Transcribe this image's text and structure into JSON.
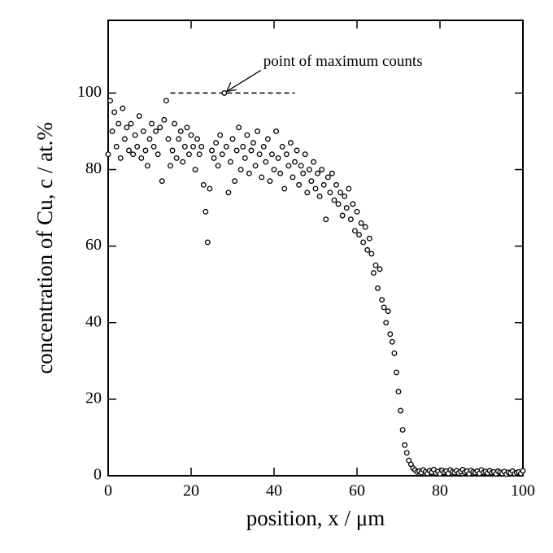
{
  "chart_data": {
    "type": "scatter",
    "xlabel": "position, x / μm",
    "ylabel": "concentration of Cu, c / at.%",
    "xlim": [
      0,
      100
    ],
    "xticks": [
      0,
      20,
      40,
      60,
      80,
      100
    ],
    "ylim": [
      0,
      119
    ],
    "yticks": [
      0,
      20,
      40,
      60,
      80,
      100
    ],
    "annotation": {
      "text": "point of maximum counts",
      "x": 28,
      "y": 100
    },
    "reference_line": {
      "y": 100,
      "x": [
        15,
        45
      ]
    },
    "series": [
      {
        "color": "#000000",
        "x": [
          0,
          0.5,
          1,
          1.5,
          2,
          2.5,
          3,
          3.5,
          4,
          4.5,
          5,
          5.5,
          6,
          6.5,
          7,
          7.5,
          8,
          8.5,
          9,
          9.5,
          10,
          10.5,
          11,
          11.5,
          12,
          12.5,
          13,
          13.5,
          14,
          14.5,
          15,
          15.5,
          16,
          16.5,
          17,
          17.5,
          18,
          18.5,
          19,
          19.5,
          20,
          20.5,
          21,
          21.5,
          22,
          22.5,
          23,
          23.5,
          24,
          24.5,
          25,
          25.5,
          26,
          26.5,
          27,
          27.5,
          28,
          28.5,
          29,
          29.5,
          30,
          30.5,
          31,
          31.5,
          32,
          32.5,
          33,
          33.5,
          34,
          34.5,
          35,
          35.5,
          36,
          36.5,
          37,
          37.5,
          38,
          38.5,
          39,
          39.5,
          40,
          40.5,
          41,
          41.5,
          42,
          42.5,
          43,
          43.5,
          44,
          44.5,
          45,
          45.5,
          46,
          46.5,
          47,
          47.5,
          48,
          48.5,
          49,
          49.5,
          50,
          50.5,
          51,
          51.5,
          52,
          52.5,
          53,
          53.5,
          54,
          54.5,
          55,
          55.5,
          56,
          56.5,
          57,
          57.5,
          58,
          58.5,
          59,
          59.5,
          60,
          60.5,
          61,
          61.5,
          62,
          62.5,
          63,
          63.5,
          64,
          64.5,
          65,
          65.5,
          66,
          66.5,
          67,
          67.5,
          68,
          68.5,
          69,
          69.5,
          70,
          70.5,
          71,
          71.5,
          72,
          72.5,
          73,
          73.5,
          74,
          74.5,
          75,
          75.5,
          76,
          76.5,
          77,
          77.5,
          78,
          78.5,
          79,
          79.5,
          80,
          80.5,
          81,
          81.5,
          82,
          82.5,
          83,
          83.5,
          84,
          84.5,
          85,
          85.5,
          86,
          86.5,
          87,
          87.5,
          88,
          88.5,
          89,
          89.5,
          90,
          90.5,
          91,
          91.5,
          92,
          92.5,
          93,
          93.5,
          94,
          94.5,
          95,
          95.5,
          96,
          96.5,
          97,
          97.5,
          98,
          98.5,
          99,
          99.5,
          100
        ],
        "values": [
          84,
          98,
          90,
          95,
          86,
          92,
          83,
          96,
          88,
          91,
          85,
          92,
          84,
          89,
          86,
          94,
          83,
          90,
          85,
          81,
          88,
          92,
          86,
          90,
          84,
          91,
          77,
          93,
          98,
          88,
          81,
          85,
          92,
          83,
          88,
          90,
          82,
          86,
          91,
          84,
          89,
          86,
          80,
          88,
          84,
          86,
          76,
          69,
          61,
          75,
          85,
          83,
          87,
          81,
          89,
          84,
          100,
          86,
          74,
          82,
          88,
          77,
          85,
          91,
          80,
          86,
          83,
          89,
          79,
          85,
          87,
          81,
          90,
          84,
          78,
          86,
          82,
          88,
          77,
          84,
          80,
          90,
          83,
          79,
          86,
          75,
          84,
          81,
          87,
          78,
          82,
          85,
          76,
          81,
          79,
          84,
          74,
          80,
          77,
          82,
          75,
          79,
          73,
          80,
          76,
          67,
          78,
          74,
          79,
          72,
          76,
          71,
          74,
          68,
          73,
          70,
          75,
          67,
          71,
          64,
          69,
          63,
          66,
          61,
          65,
          59,
          62,
          58,
          53,
          55,
          49,
          54,
          46,
          44,
          40,
          43,
          37,
          35,
          32,
          27,
          22,
          17,
          12,
          8,
          6,
          4,
          3,
          2,
          1.5,
          1,
          1.2,
          0.8,
          1.5,
          1,
          0.6,
          1.3,
          0.9,
          1.6,
          0.7,
          1.1,
          0.5,
          1.4,
          0.9,
          1.2,
          0.6,
          1.5,
          1,
          0.8,
          1.3,
          0.7,
          1.1,
          1.6,
          0.9,
          1.2,
          0.5,
          1.4,
          1,
          0.8,
          1.2,
          0.6,
          1.5,
          0.9,
          1.1,
          0.7,
          1.3,
          0.8,
          1,
          0.5,
          1.2,
          0.9,
          0.6,
          1.1,
          0.4,
          0.9,
          0.7,
          1.2,
          0.5,
          0.8,
          1,
          0.6,
          1.3
        ]
      }
    ]
  }
}
